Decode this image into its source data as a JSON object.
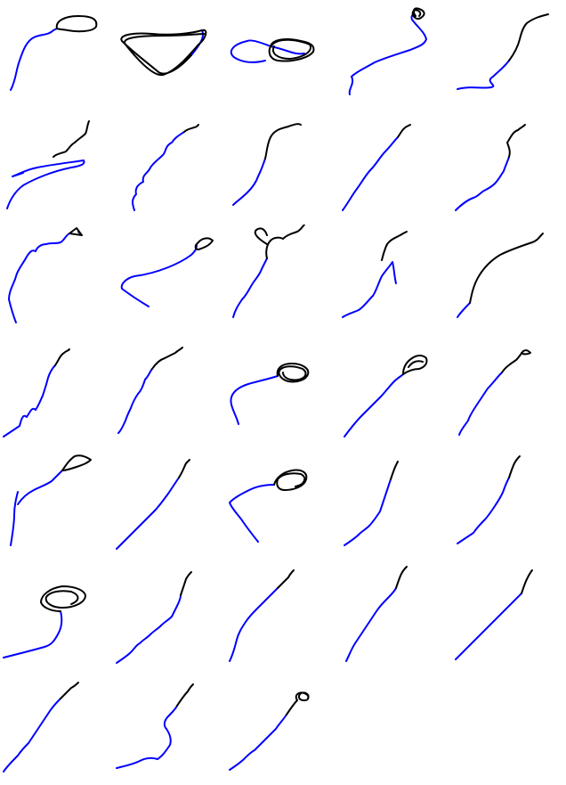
{
  "colors": {
    "background": "#ffffff",
    "trajectory_head": "#000000",
    "trajectory_tail": "#0000ff"
  },
  "panels": [
    {
      "id": 1,
      "shape": "loop-top"
    },
    {
      "id": 2,
      "shape": "triangle-loop"
    },
    {
      "id": 3,
      "shape": "oval-loop"
    },
    {
      "id": 4,
      "shape": "small-knot"
    },
    {
      "id": 5,
      "shape": "curve"
    },
    {
      "id": 6,
      "shape": "zigzag-back"
    },
    {
      "id": 7,
      "shape": "jagged-diagonal"
    },
    {
      "id": 8,
      "shape": "smooth-diagonal"
    },
    {
      "id": 9,
      "shape": "smooth-diagonal"
    },
    {
      "id": 10,
      "shape": "jagged-diagonal"
    },
    {
      "id": 11,
      "shape": "small-triangle"
    },
    {
      "id": 12,
      "shape": "small-loop"
    },
    {
      "id": 13,
      "shape": "small-loop"
    },
    {
      "id": 14,
      "shape": "spike"
    },
    {
      "id": 15,
      "shape": "smooth-arc"
    },
    {
      "id": 16,
      "shape": "zigzag"
    },
    {
      "id": 17,
      "shape": "zigzag"
    },
    {
      "id": 18,
      "shape": "dense-knot"
    },
    {
      "id": 19,
      "shape": "triangle-knot"
    },
    {
      "id": 20,
      "shape": "small-knot"
    },
    {
      "id": 21,
      "shape": "triangle-loop"
    },
    {
      "id": 22,
      "shape": "smooth-diagonal"
    },
    {
      "id": 23,
      "shape": "oval-loop"
    },
    {
      "id": 24,
      "shape": "jagged-diagonal"
    },
    {
      "id": 25,
      "shape": "jagged-diagonal"
    },
    {
      "id": 26,
      "shape": "dense-knot"
    },
    {
      "id": 27,
      "shape": "dense-zigzag"
    },
    {
      "id": 28,
      "shape": "jagged-diagonal"
    },
    {
      "id": 29,
      "shape": "dense-zigzag"
    },
    {
      "id": 30,
      "shape": "smooth-diagonal"
    },
    {
      "id": 31,
      "shape": "dense-zigzag"
    },
    {
      "id": 32,
      "shape": "wander"
    },
    {
      "id": 33,
      "shape": "knot-zigzag"
    }
  ]
}
